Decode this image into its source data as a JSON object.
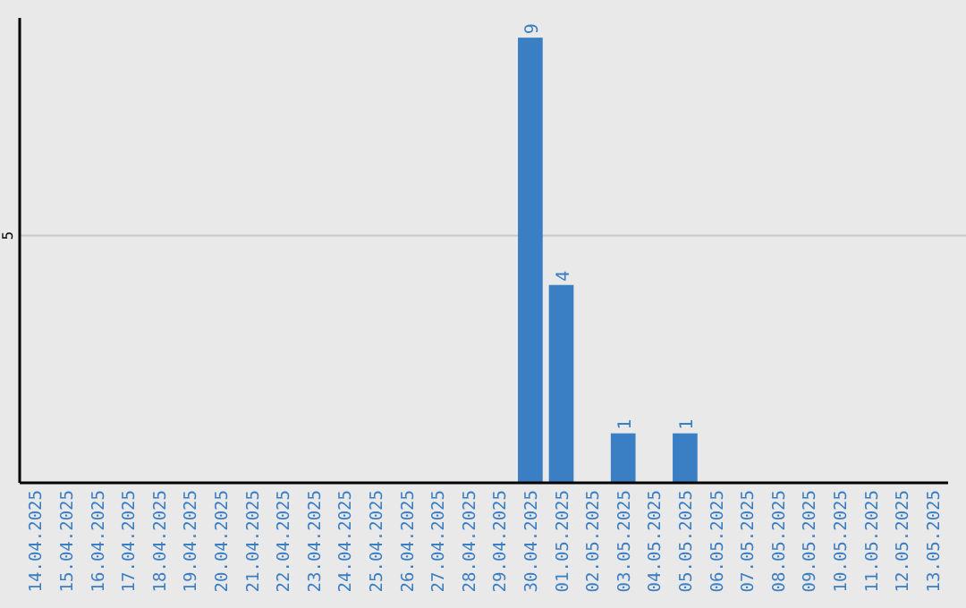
{
  "chart_data": {
    "type": "bar",
    "categories": [
      "14.04.2025",
      "15.04.2025",
      "16.04.2025",
      "17.04.2025",
      "18.04.2025",
      "19.04.2025",
      "20.04.2025",
      "21.04.2025",
      "22.04.2025",
      "23.04.2025",
      "24.04.2025",
      "25.04.2025",
      "26.04.2025",
      "27.04.2025",
      "28.04.2025",
      "29.04.2025",
      "30.04.2025",
      "01.05.2025",
      "02.05.2025",
      "03.05.2025",
      "04.05.2025",
      "05.05.2025",
      "06.05.2025",
      "07.05.2025",
      "08.05.2025",
      "09.05.2025",
      "10.05.2025",
      "11.05.2025",
      "12.05.2025",
      "13.05.2025"
    ],
    "values": [
      null,
      null,
      null,
      null,
      null,
      null,
      null,
      null,
      null,
      null,
      null,
      null,
      null,
      null,
      null,
      null,
      9,
      4,
      null,
      1,
      null,
      1,
      null,
      null,
      null,
      null,
      null,
      null,
      null,
      null
    ],
    "data_labels": true,
    "ref_lines": [
      {
        "axis": "y",
        "value": 5,
        "label": "5",
        "color": "#c8c8c8"
      }
    ],
    "color": "#3a7ec4",
    "ylim": [
      0,
      9.4
    ]
  }
}
